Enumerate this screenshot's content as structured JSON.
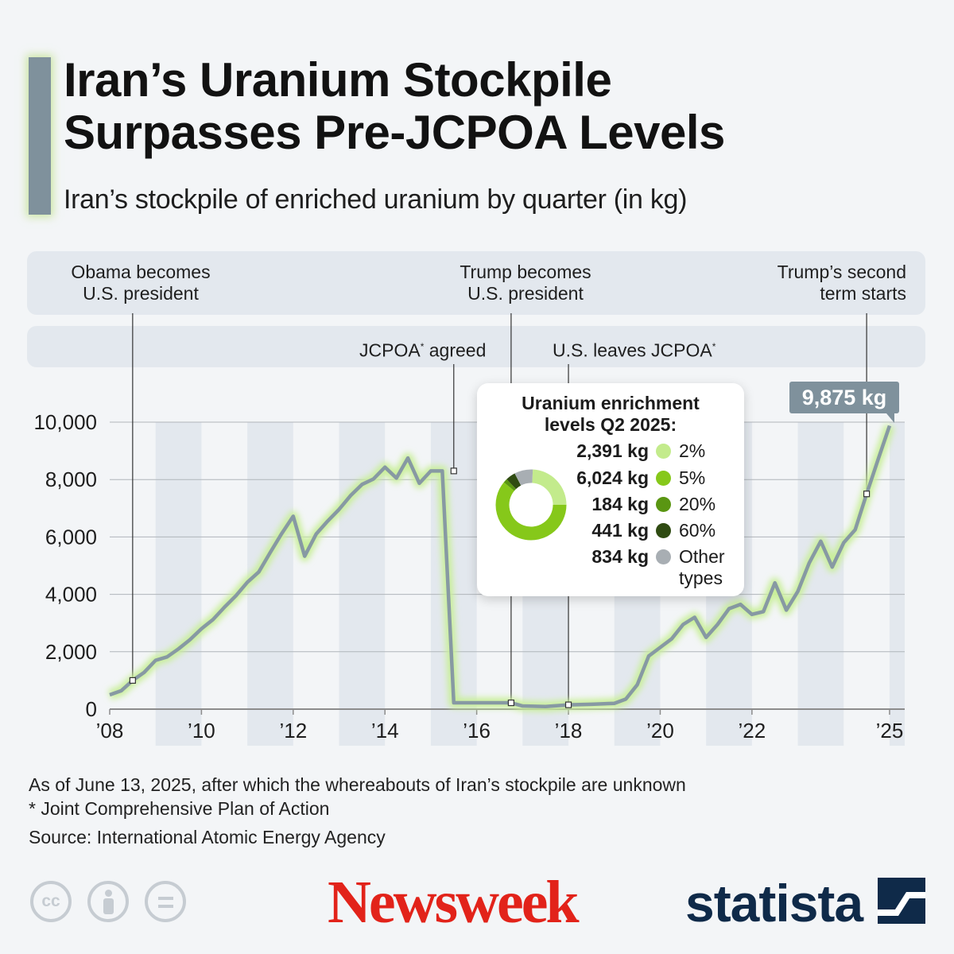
{
  "header": {
    "title_line1": "Iran’s Uranium Stockpile",
    "title_line2": "Surpasses Pre-JCPOA Levels",
    "subtitle": "Iran’s stockpile of enriched uranium by quarter (in kg)"
  },
  "events": {
    "obama_line1": "Obama becomes",
    "obama_line2": "U.S. president",
    "trump_line1": "Trump becomes",
    "trump_line2": "U.S. president",
    "second_line1": "Trump’s second",
    "second_line2": "term starts",
    "jcpoa_agreed": "JCPOA",
    "jcpoa_agreed_suffix": " agreed",
    "us_leaves": "U.S. leaves JCPOA",
    "asterisk": "*"
  },
  "callout": {
    "label": "9,875 kg"
  },
  "breakdown": {
    "title_line1": "Uranium enrichment",
    "title_line2": "levels Q2 2025:",
    "items": [
      {
        "value": "2,391 kg",
        "label": "2%",
        "kg": 2391,
        "color": "#c3eb8c"
      },
      {
        "value": "6,024 kg",
        "label": "5%",
        "kg": 6024,
        "color": "#86c81a"
      },
      {
        "value": "184 kg",
        "label": "20%",
        "kg": 184,
        "color": "#5a9612"
      },
      {
        "value": "441 kg",
        "label": "60%",
        "kg": 441,
        "color": "#2f4b12"
      },
      {
        "value": "834 kg",
        "label": "Other",
        "label2": "types",
        "kg": 834,
        "color": "#a8aeb3"
      }
    ]
  },
  "chart_data": {
    "type": "line",
    "title": "Iran’s stockpile of enriched uranium by quarter (in kg)",
    "xlabel": "",
    "ylabel": "",
    "ylim": [
      0,
      10000
    ],
    "xlim": [
      2008,
      2025.33
    ],
    "y_ticks": [
      0,
      2000,
      4000,
      6000,
      8000,
      10000
    ],
    "y_tick_labels": [
      "0",
      "2,000",
      "4,000",
      "6,000",
      "8,000",
      "10,000"
    ],
    "x_ticks": [
      2008,
      2010,
      2012,
      2014,
      2016,
      2018,
      2020,
      2022,
      2025
    ],
    "x_tick_labels": [
      "’08",
      "’10",
      "’12",
      "’14",
      "’16",
      "’18",
      "’20",
      "’22",
      "’25"
    ],
    "grid": true,
    "line_color": "#8799a3",
    "glow_color": "#c9ef9a",
    "series": [
      {
        "name": "",
        "points": [
          [
            2008.0,
            500
          ],
          [
            2008.25,
            640
          ],
          [
            2008.5,
            1000
          ],
          [
            2008.75,
            1280
          ],
          [
            2009.0,
            1700
          ],
          [
            2009.25,
            1820
          ],
          [
            2009.5,
            2100
          ],
          [
            2009.75,
            2420
          ],
          [
            2010.0,
            2800
          ],
          [
            2010.25,
            3120
          ],
          [
            2010.5,
            3550
          ],
          [
            2010.75,
            3950
          ],
          [
            2011.0,
            4420
          ],
          [
            2011.25,
            4780
          ],
          [
            2011.5,
            5460
          ],
          [
            2011.75,
            6120
          ],
          [
            2012.0,
            6720
          ],
          [
            2012.25,
            5330
          ],
          [
            2012.5,
            6100
          ],
          [
            2012.75,
            6550
          ],
          [
            2013.0,
            6960
          ],
          [
            2013.25,
            7440
          ],
          [
            2013.5,
            7830
          ],
          [
            2013.75,
            8020
          ],
          [
            2014.0,
            8430
          ],
          [
            2014.25,
            8050
          ],
          [
            2014.5,
            8750
          ],
          [
            2014.75,
            7870
          ],
          [
            2015.0,
            8300
          ],
          [
            2015.25,
            8300
          ],
          [
            2015.5,
            220
          ],
          [
            2016.0,
            220
          ],
          [
            2016.5,
            220
          ],
          [
            2016.75,
            220
          ],
          [
            2017.0,
            110
          ],
          [
            2017.5,
            90
          ],
          [
            2018.0,
            150
          ],
          [
            2018.5,
            170
          ],
          [
            2019.0,
            200
          ],
          [
            2019.25,
            350
          ],
          [
            2019.5,
            850
          ],
          [
            2019.75,
            1850
          ],
          [
            2020.0,
            2150
          ],
          [
            2020.25,
            2450
          ],
          [
            2020.5,
            2950
          ],
          [
            2020.75,
            3200
          ],
          [
            2021.0,
            2500
          ],
          [
            2021.25,
            2950
          ],
          [
            2021.5,
            3500
          ],
          [
            2021.75,
            3650
          ],
          [
            2022.0,
            3300
          ],
          [
            2022.25,
            3400
          ],
          [
            2022.5,
            4400
          ],
          [
            2022.75,
            3450
          ],
          [
            2023.0,
            4100
          ],
          [
            2023.25,
            5100
          ],
          [
            2023.5,
            5850
          ],
          [
            2023.75,
            4950
          ],
          [
            2024.0,
            5800
          ],
          [
            2024.25,
            6250
          ],
          [
            2024.5,
            7500
          ],
          [
            2024.75,
            8700
          ],
          [
            2025.0,
            9875
          ]
        ]
      }
    ],
    "annotations": [
      {
        "label": "Obama becomes U.S. president",
        "x": 2008.5,
        "y": 1000
      },
      {
        "label": "JCPOA* agreed",
        "x": 2015.5,
        "y": 8300
      },
      {
        "label": "Trump becomes U.S. president",
        "x": 2016.75,
        "y": 220
      },
      {
        "label": "U.S. leaves JCPOA*",
        "x": 2018.0,
        "y": 150
      },
      {
        "label": "Trump’s second term starts",
        "x": 2024.5,
        "y": 7500
      },
      {
        "label": "9,875 kg",
        "x": 2025.0,
        "y": 9875
      }
    ]
  },
  "footer": {
    "note1": "As of June 13, 2025, after which the whereabouts of Iran’s stockpile are unknown",
    "note2": "* Joint Comprehensive Plan of Action",
    "source": "Source: International Atomic Energy Agency",
    "cc_label": "cc",
    "newsweek": "Newsweek",
    "statista": "statista"
  }
}
